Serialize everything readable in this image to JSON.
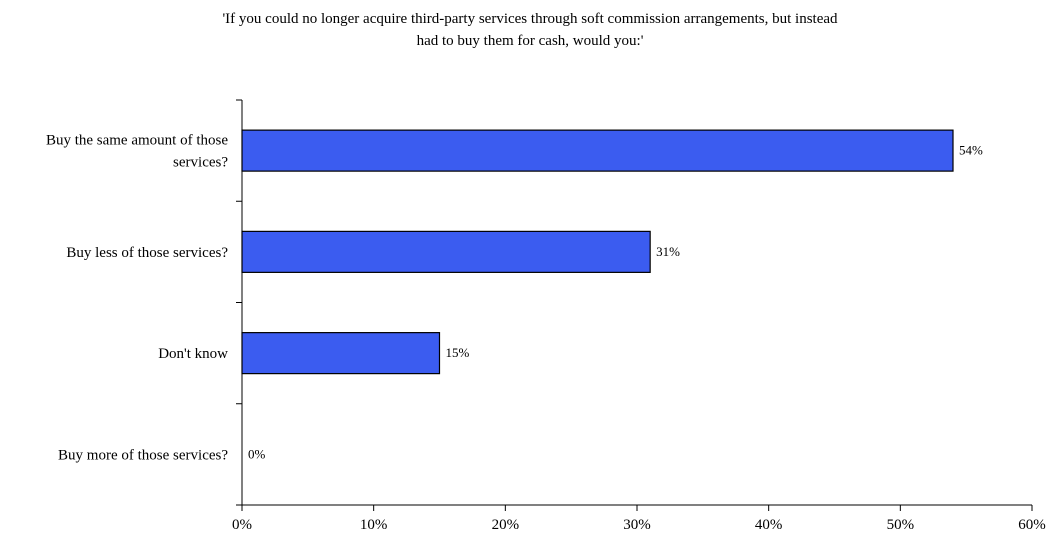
{
  "chart_data": {
    "type": "bar",
    "orientation": "horizontal",
    "title_lines": [
      "'If you could no longer acquire third-party services through soft commission arrangements, but instead",
      "had to buy them for cash, would you:'"
    ],
    "categories": [
      [
        "Buy the same amount of those",
        "services?"
      ],
      [
        "Buy less of those services?"
      ],
      [
        "Don't know"
      ],
      [
        "Buy more of those services?"
      ]
    ],
    "values": [
      54,
      31,
      15,
      0
    ],
    "data_labels": [
      "54%",
      "31%",
      "15%",
      "0%"
    ],
    "xlim": [
      0,
      60
    ],
    "x_ticks": [
      0,
      10,
      20,
      30,
      40,
      50,
      60
    ],
    "x_tick_labels": [
      "0%",
      "10%",
      "20%",
      "30%",
      "40%",
      "50%",
      "60%"
    ],
    "bar_color": "#3b5cf0",
    "bar_edge_color": "#000000",
    "grid": false,
    "legend": "none"
  }
}
